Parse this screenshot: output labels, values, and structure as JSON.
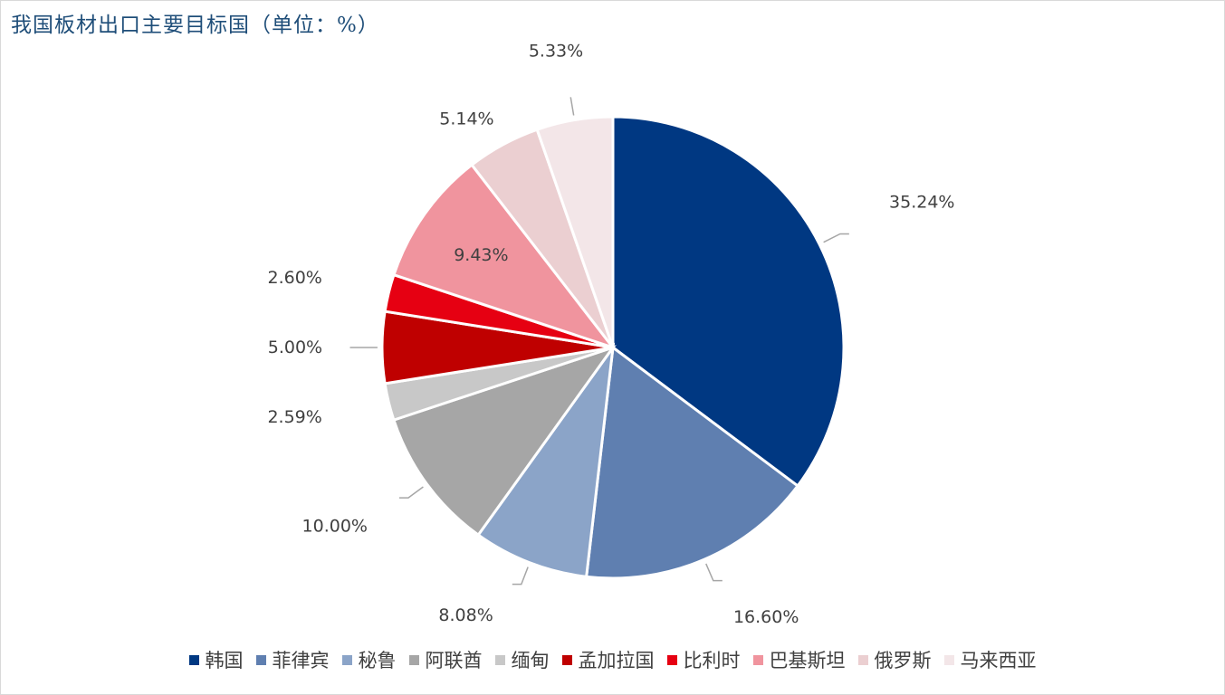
{
  "title": "我国板材出口主要目标国（单位：%）",
  "chart_data": {
    "type": "pie",
    "title": "我国板材出口主要目标国（单位：%）",
    "unit": "%",
    "legend_position": "bottom",
    "categories": [
      "韩国",
      "菲律宾",
      "秘鲁",
      "阿联酋",
      "缅甸",
      "孟加拉国",
      "比利时",
      "巴基斯坦",
      "俄罗斯",
      "马来西亚"
    ],
    "values": [
      35.24,
      16.6,
      8.08,
      10.0,
      2.59,
      5.0,
      2.6,
      9.43,
      5.14,
      5.33
    ],
    "labels": [
      "35.24%",
      "16.60%",
      "8.08%",
      "10.00%",
      "2.59%",
      "5.00%",
      "2.60%",
      "9.43%",
      "5.14%",
      "5.33%"
    ],
    "colors": [
      "#003882",
      "#5f7fb0",
      "#8ba4c8",
      "#a6a6a6",
      "#c8c8c8",
      "#bf0000",
      "#e60012",
      "#f0949e",
      "#ebcfd1",
      "#f3e6e8"
    ]
  }
}
